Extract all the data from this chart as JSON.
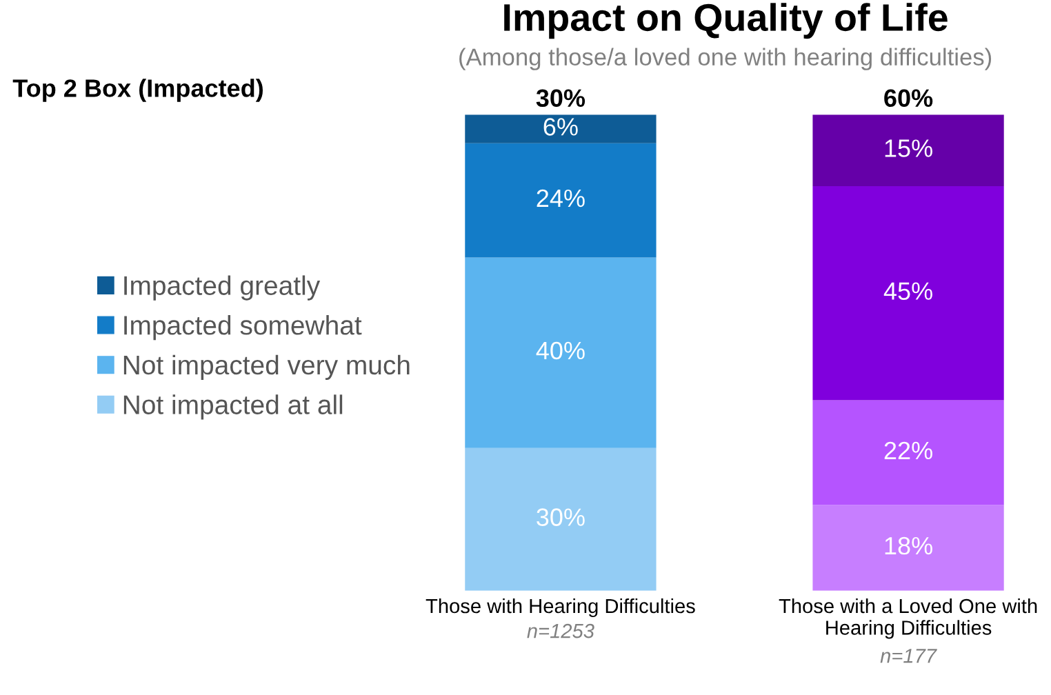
{
  "chart_data": {
    "type": "bar",
    "title": "Impact on Quality of Life",
    "subtitle": "(Among those/a loved one with hearing difficulties)",
    "categories": [
      "Those with Hearing Difficulties",
      "Those with a Loved One with\nHearing Difficulties"
    ],
    "stacked": true,
    "ylim": [
      0,
      100
    ],
    "tick_labels": "x",
    "grid": false,
    "legend": "left",
    "series": [
      {
        "name": "Not impacted at all",
        "color": "#93ccf4",
        "colors": [
          "#93ccf4",
          "#c77eff"
        ],
        "values": [
          30,
          18
        ],
        "value_labels": [
          "30%",
          "18%"
        ]
      },
      {
        "name": "Not impacted very much",
        "color": "#5bb4ef",
        "colors": [
          "#5bb4ef",
          "#b554ff"
        ],
        "values": [
          40,
          22
        ],
        "value_labels": [
          "40%",
          "22%"
        ]
      },
      {
        "name": "Impacted somewhat",
        "color": "#137cc8",
        "colors": [
          "#137cc8",
          "#8000dd"
        ],
        "values": [
          24,
          45
        ],
        "value_labels": [
          "24%",
          "45%"
        ]
      },
      {
        "name": "Impacted greatly",
        "color": "#0e5c96",
        "colors": [
          "#0e5c96",
          "#6500a8"
        ],
        "values": [
          6,
          15
        ],
        "value_labels": [
          "6%",
          "15%"
        ]
      }
    ],
    "annotations": [
      "Top 2 Box (Impacted)",
      "n=1253",
      "n=177",
      {
        "text": "30%",
        "x": "Those with Hearing Difficulties",
        "y": 100
      },
      {
        "text": "60%",
        "x": "Those with a Loved One with\nHearing Difficulties",
        "y": 100
      }
    ]
  }
}
